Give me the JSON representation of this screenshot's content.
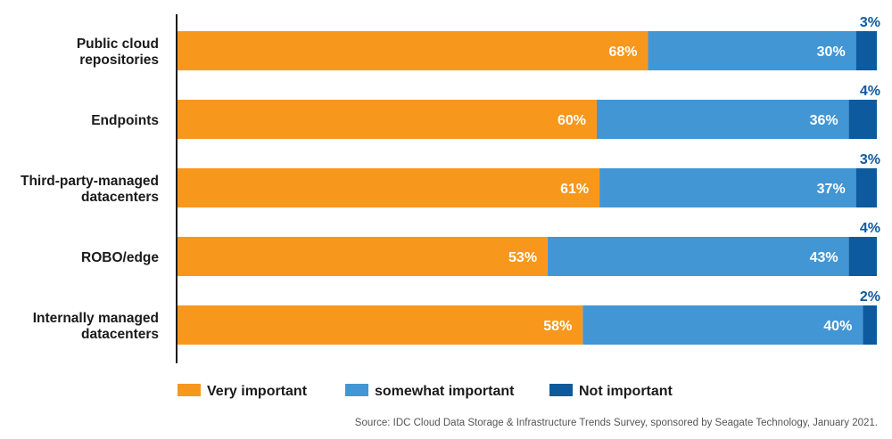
{
  "chart_data": {
    "type": "bar",
    "orientation": "horizontal",
    "stacked": true,
    "categories": [
      [
        "Public cloud",
        "repositories"
      ],
      [
        "Endpoints"
      ],
      [
        "Third-party-managed",
        "datacenters"
      ],
      [
        "ROBO/edge"
      ],
      [
        "Internally managed",
        "datacenters"
      ]
    ],
    "series": [
      {
        "name": "Very important",
        "color": "#F7981D",
        "values": [
          68,
          60,
          61,
          53,
          58
        ]
      },
      {
        "name": "somewhat important",
        "color": "#4296D3",
        "values": [
          30,
          36,
          37,
          43,
          40
        ]
      },
      {
        "name": "Not important",
        "color": "#0D5A9E",
        "values": [
          3,
          4,
          3,
          4,
          2
        ]
      }
    ],
    "value_suffix": "%",
    "legend_position": "bottom",
    "grid": false,
    "source": "Source: IDC Cloud Data Storage & Infrastructure Trends Survey, sponsored by Seagate Technology, January 2021."
  }
}
